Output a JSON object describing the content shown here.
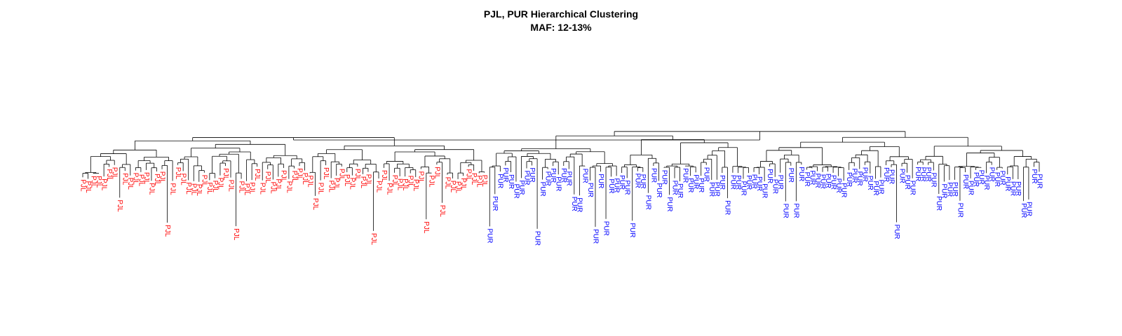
{
  "chart_data": {
    "type": "dendrogram",
    "title": "PJL, PUR Hierarchical Clustering",
    "subtitle": "MAF: 12-13%",
    "colors": {
      "PJL": "#ff0000",
      "PUR": "#0000ff",
      "branches": "#000000"
    },
    "leaves": [
      "PJL",
      "PJL",
      "PJL",
      "PJL",
      "PJL",
      "PJL",
      "PJL",
      "PJL",
      "PJL",
      "PJL",
      "PJL",
      "PJL",
      "PJL",
      "PJL",
      "PJL",
      "PJL",
      "PJL",
      "PJL",
      "PJL",
      "PJL",
      "PJL",
      "PJL",
      "PJL",
      "PJL",
      "PJL",
      "PJL",
      "PJL",
      "PJL",
      "PJL",
      "PJL",
      "PJL",
      "PJL",
      "PJL",
      "PJL",
      "PJL",
      "PJL",
      "PJL",
      "PJL",
      "PJL",
      "PJL",
      "PJL",
      "PJL",
      "PJL",
      "PJL",
      "PJL",
      "PJL",
      "PJL",
      "PJL",
      "PJL",
      "PJL",
      "PJL",
      "PJL",
      "PJL",
      "PJL",
      "PJL",
      "PJL",
      "PJL",
      "PJL",
      "PJL",
      "PJL",
      "PJL",
      "PJL",
      "PJL",
      "PJL",
      "PJL",
      "PJL",
      "PJL",
      "PJL",
      "PJL",
      "PJL",
      "PJL",
      "PJL",
      "PJL",
      "PJL",
      "PJL",
      "PJL",
      "PJL",
      "PUR",
      "PUR",
      "PUR",
      "PUR",
      "PUR",
      "PUR",
      "PUR",
      "PUR",
      "PUR",
      "PUR",
      "PUR",
      "PUR",
      "PUR",
      "PUR",
      "PUR",
      "PUR",
      "PUR",
      "PUR",
      "PUR",
      "PUR",
      "PUR",
      "PUR",
      "PUR",
      "PUR",
      "PUR",
      "PUR",
      "PUR",
      "PUR",
      "PUR",
      "PUR",
      "PUR",
      "PUR",
      "PUR",
      "PUR",
      "PUR",
      "PUR",
      "PUR",
      "PUR",
      "PUR",
      "PUR",
      "PUR",
      "PUR",
      "PUR",
      "PUR",
      "PUR",
      "PUR",
      "PUR",
      "PUR",
      "PUR",
      "PUR",
      "PUR",
      "PUR",
      "PUR",
      "PUR",
      "PUR",
      "PUR",
      "PUR",
      "PUR",
      "PUR",
      "PUR",
      "PUR",
      "PUR",
      "PUR",
      "PUR",
      "PUR",
      "PUR",
      "PUR",
      "PUR",
      "PUR",
      "PUR",
      "PUR",
      "PUR",
      "PUR",
      "PUR",
      "PUR",
      "PUR",
      "PUR",
      "PUR",
      "PUR",
      "PUR",
      "PUR",
      "PUR",
      "PUR",
      "PUR",
      "PUR",
      "PUR",
      "PUR",
      "PUR",
      "PUR",
      "PUR",
      "PUR",
      "PUR",
      "PUR",
      "PUR",
      "PUR",
      "PUR",
      "PUR",
      "PUR",
      "PUR",
      "PUR",
      "PUR",
      "PUR",
      "PUR",
      "PUR",
      "PUR"
    ]
  }
}
